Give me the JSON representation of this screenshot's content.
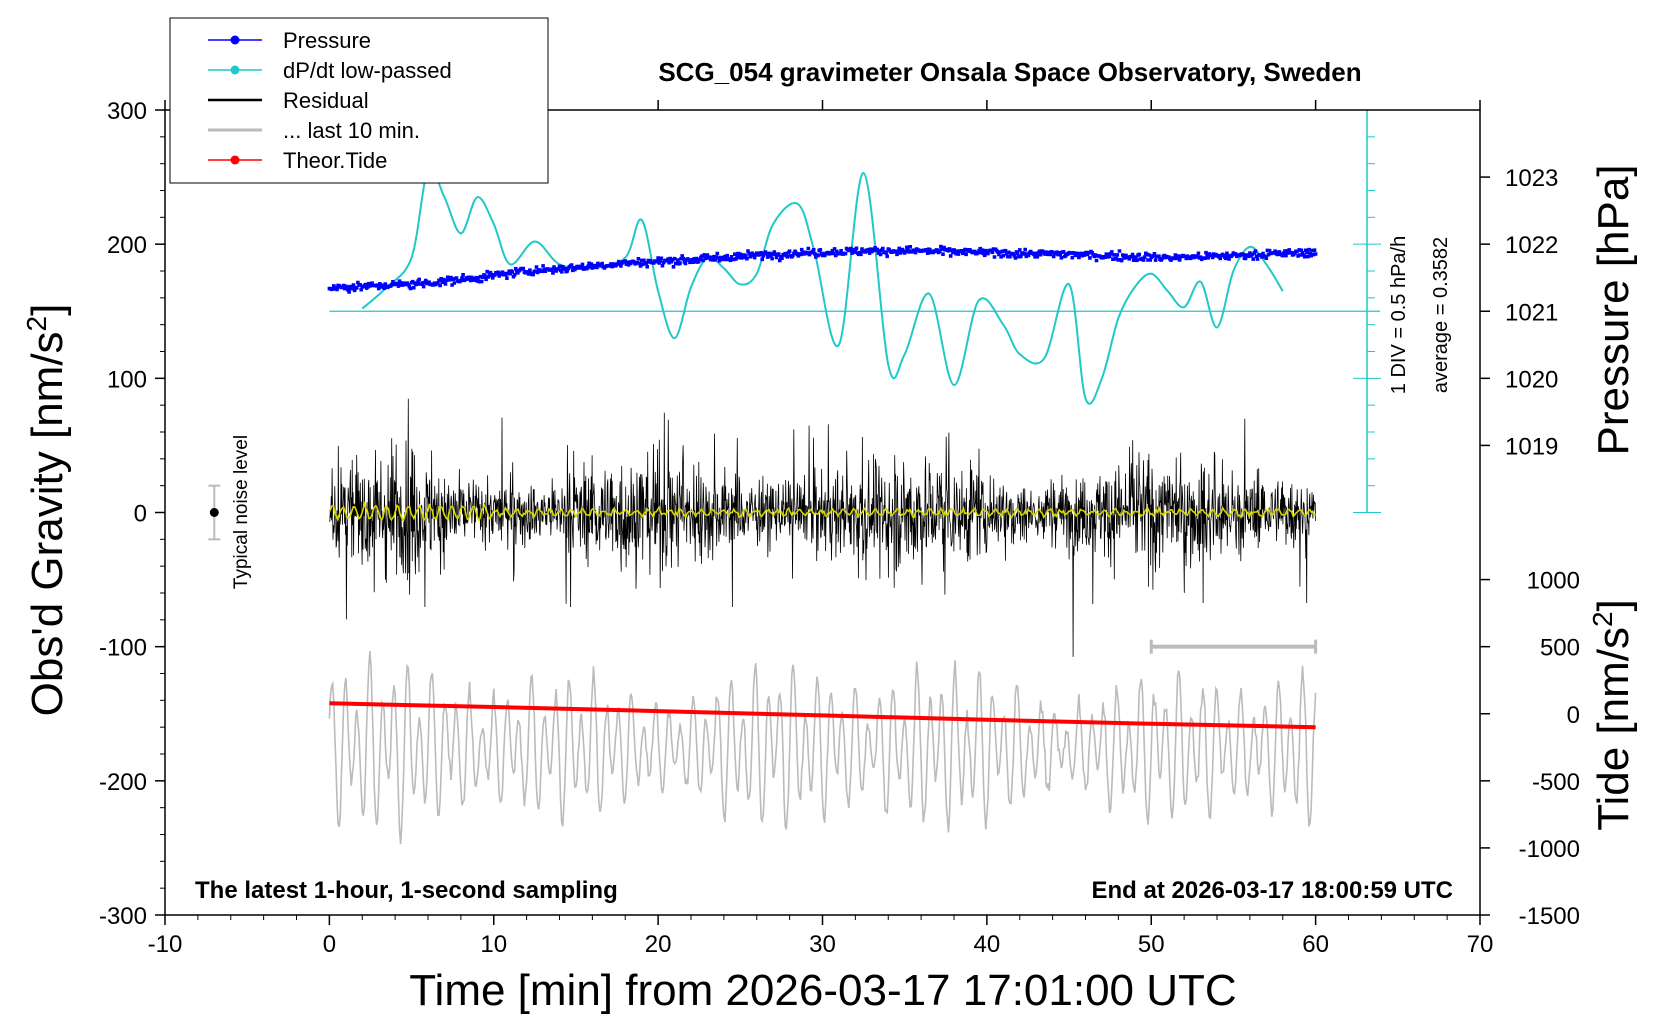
{
  "chart_data": {
    "type": "line",
    "title": "SCG_054 gravimeter Onsala Space Observatory, Sweden",
    "xlabel": "Time [min] from 2026-03-17 17:01:00 UTC",
    "ylabel_left": "Obs'd Gravity [nm/s",
    "ylabel_left_sup": "2",
    "ylabel_left_end": "]",
    "ylabel_right_pressure": "Pressure [hPa]",
    "ylabel_right_tide": "Tide [nm/s",
    "ylabel_right_tide_sup": "2",
    "ylabel_right_tide_end": "]",
    "xlim": [
      -10,
      70
    ],
    "ylim_left": [
      -300,
      300
    ],
    "x_ticks": [
      -10,
      0,
      10,
      20,
      30,
      40,
      50,
      60,
      70
    ],
    "y_ticks_left": [
      -300,
      -200,
      -100,
      0,
      100,
      200,
      300
    ],
    "pressure_ticks": [
      1019,
      1020,
      1021,
      1022,
      1023
    ],
    "tide_ticks": [
      -1500,
      -1000,
      -500,
      0,
      500,
      1000
    ],
    "legend_position": "top-left",
    "legend": [
      {
        "name": "Pressure",
        "color": "#0000ff",
        "marker": "dot"
      },
      {
        "name": "dP/dt low-passed",
        "color": "#20c8c8",
        "marker": "dot"
      },
      {
        "name": "Residual",
        "color": "#000000",
        "marker": "line"
      },
      {
        "name": "... last 10 min.",
        "color": "#bbbbbb",
        "marker": "line"
      },
      {
        "name": "Theor.Tide",
        "color": "#ff0000",
        "marker": "dot"
      }
    ],
    "annotations": {
      "scale_label": "1 DIV = 0.5 hPa/h",
      "average_label": "average = 0.3582",
      "noise_label": "Typical noise level",
      "bottom_left": "The latest 1-hour, 1-second sampling",
      "bottom_right": "End at 2026-03-17 18:00:59 UTC"
    },
    "series": [
      {
        "name": "Pressure",
        "axis": "pressure_hPa",
        "x": [
          0,
          3,
          6,
          9,
          12,
          15,
          18,
          21,
          24,
          27,
          30,
          33,
          36,
          39,
          42,
          45,
          48,
          51,
          54,
          57,
          60
        ],
        "y": [
          1021.35,
          1021.38,
          1021.42,
          1021.5,
          1021.6,
          1021.65,
          1021.72,
          1021.75,
          1021.8,
          1021.85,
          1021.88,
          1021.9,
          1021.9,
          1021.88,
          1021.86,
          1021.85,
          1021.82,
          1021.8,
          1021.82,
          1021.85,
          1021.88
        ]
      },
      {
        "name": "dP/dt low-passed",
        "axis": "gravity_plot_units",
        "x": [
          2,
          3.5,
          5,
          6,
          7,
          8,
          9,
          10,
          11,
          12.5,
          14,
          16,
          18,
          19,
          20,
          21,
          22,
          23,
          24,
          25,
          26,
          27,
          28.5,
          29.5,
          31,
          32.5,
          34,
          35,
          36.5,
          38,
          39.5,
          41,
          42,
          43.5,
          45,
          46,
          47,
          48,
          49,
          50,
          51,
          52,
          53,
          54,
          55,
          56,
          57,
          58
        ],
        "y": [
          152,
          168,
          190,
          255,
          235,
          208,
          235,
          215,
          185,
          202,
          185,
          182,
          190,
          218,
          165,
          130,
          168,
          190,
          182,
          170,
          178,
          215,
          230,
          195,
          125,
          253,
          110,
          118,
          163,
          95,
          158,
          140,
          118,
          115,
          170,
          85,
          100,
          145,
          168,
          178,
          165,
          153,
          172,
          138,
          180,
          198,
          185,
          165
        ]
      },
      {
        "name": "Theor.Tide",
        "axis": "tide_nm_s2",
        "x": [
          0,
          10,
          20,
          30,
          40,
          50,
          60
        ],
        "y": [
          78,
          50,
          20,
          -12,
          -45,
          -75,
          -100
        ]
      }
    ],
    "noise_level": {
      "x": -7,
      "y": 0,
      "error": 20
    }
  }
}
